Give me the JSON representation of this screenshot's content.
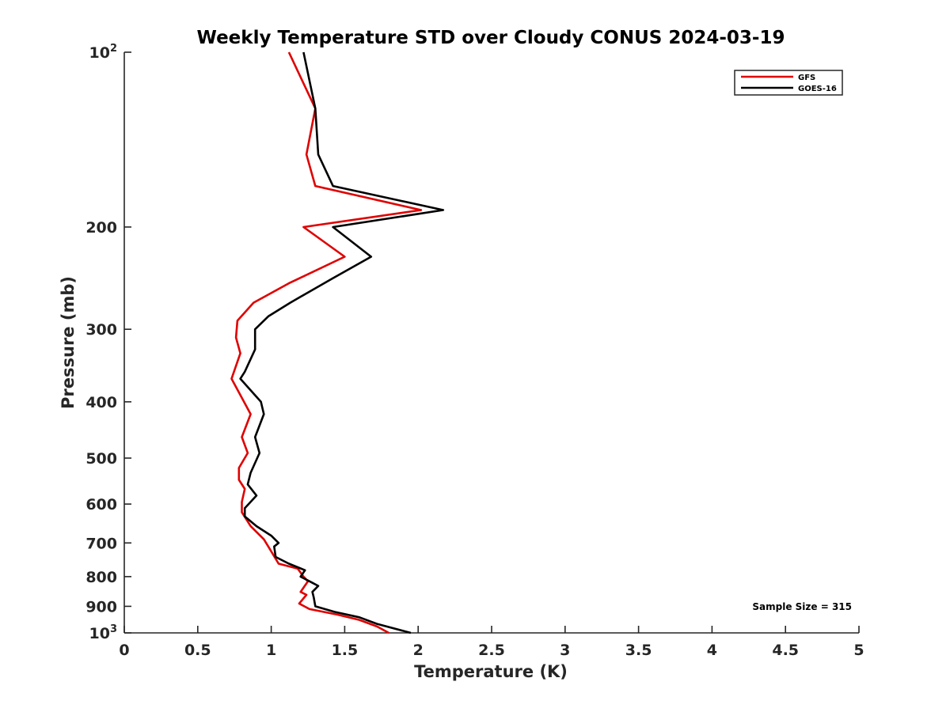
{
  "chart_data": {
    "type": "line",
    "title": "Weekly Temperature STD over Cloudy CONUS 2024-03-19",
    "xlabel": "Temperature (K)",
    "ylabel": "Pressure (mb)",
    "xlim": [
      0,
      5
    ],
    "ylim": [
      100,
      1000
    ],
    "y_scale": "log",
    "y_reversed": true,
    "grid": false,
    "x_ticks": [
      0,
      0.5,
      1,
      1.5,
      2,
      2.5,
      3,
      3.5,
      4,
      4.5,
      5
    ],
    "x_tick_labels": [
      "0",
      "0.5",
      "1",
      "1.5",
      "2",
      "2.5",
      "3",
      "3.5",
      "4",
      "4.5",
      "5"
    ],
    "y_ticks": [
      100,
      200,
      300,
      400,
      500,
      600,
      700,
      800,
      900,
      1000
    ],
    "y_tick_labels": [
      {
        "base": "10",
        "exp": "2"
      },
      {
        "base": "200",
        "exp": ""
      },
      {
        "base": "300",
        "exp": ""
      },
      {
        "base": "400",
        "exp": ""
      },
      {
        "base": "500",
        "exp": ""
      },
      {
        "base": "600",
        "exp": ""
      },
      {
        "base": "700",
        "exp": ""
      },
      {
        "base": "800",
        "exp": ""
      },
      {
        "base": "900",
        "exp": ""
      },
      {
        "base": "10",
        "exp": "3"
      }
    ],
    "legend_position": "top-right",
    "annotation": "Sample Size = 315",
    "series": [
      {
        "name": "GFS",
        "color": "#e00000",
        "points": [
          [
            1.12,
            100
          ],
          [
            1.3,
            125
          ],
          [
            1.24,
            150
          ],
          [
            1.3,
            170
          ],
          [
            2.02,
            187
          ],
          [
            1.22,
            200
          ],
          [
            1.5,
            225
          ],
          [
            1.12,
            250
          ],
          [
            0.88,
            270
          ],
          [
            0.77,
            290
          ],
          [
            0.76,
            310
          ],
          [
            0.79,
            330
          ],
          [
            0.73,
            365
          ],
          [
            0.86,
            420
          ],
          [
            0.8,
            460
          ],
          [
            0.84,
            490
          ],
          [
            0.78,
            520
          ],
          [
            0.78,
            545
          ],
          [
            0.82,
            565
          ],
          [
            0.8,
            595
          ],
          [
            0.8,
            620
          ],
          [
            0.86,
            655
          ],
          [
            0.95,
            690
          ],
          [
            0.98,
            710
          ],
          [
            1.05,
            760
          ],
          [
            1.18,
            775
          ],
          [
            1.22,
            800
          ],
          [
            1.25,
            815
          ],
          [
            1.2,
            850
          ],
          [
            1.24,
            860
          ],
          [
            1.19,
            890
          ],
          [
            1.26,
            910
          ],
          [
            1.45,
            930
          ],
          [
            1.6,
            950
          ],
          [
            1.72,
            975
          ],
          [
            1.8,
            1000
          ]
        ]
      },
      {
        "name": "GOES-16",
        "color": "#000000",
        "points": [
          [
            1.22,
            100
          ],
          [
            1.3,
            125
          ],
          [
            1.32,
            150
          ],
          [
            1.42,
            170
          ],
          [
            2.17,
            187
          ],
          [
            1.42,
            200
          ],
          [
            1.68,
            225
          ],
          [
            1.42,
            245
          ],
          [
            1.13,
            270
          ],
          [
            0.98,
            285
          ],
          [
            0.89,
            300
          ],
          [
            0.89,
            325
          ],
          [
            0.82,
            355
          ],
          [
            0.79,
            365
          ],
          [
            0.93,
            400
          ],
          [
            0.95,
            420
          ],
          [
            0.89,
            460
          ],
          [
            0.92,
            490
          ],
          [
            0.86,
            530
          ],
          [
            0.84,
            555
          ],
          [
            0.9,
            580
          ],
          [
            0.82,
            610
          ],
          [
            0.82,
            630
          ],
          [
            0.9,
            655
          ],
          [
            1.0,
            680
          ],
          [
            1.05,
            700
          ],
          [
            1.02,
            710
          ],
          [
            1.03,
            740
          ],
          [
            1.12,
            760
          ],
          [
            1.23,
            780
          ],
          [
            1.2,
            800
          ],
          [
            1.28,
            820
          ],
          [
            1.32,
            830
          ],
          [
            1.28,
            850
          ],
          [
            1.29,
            870
          ],
          [
            1.3,
            900
          ],
          [
            1.43,
            920
          ],
          [
            1.6,
            940
          ],
          [
            1.72,
            965
          ],
          [
            1.95,
            1000
          ]
        ]
      }
    ]
  }
}
